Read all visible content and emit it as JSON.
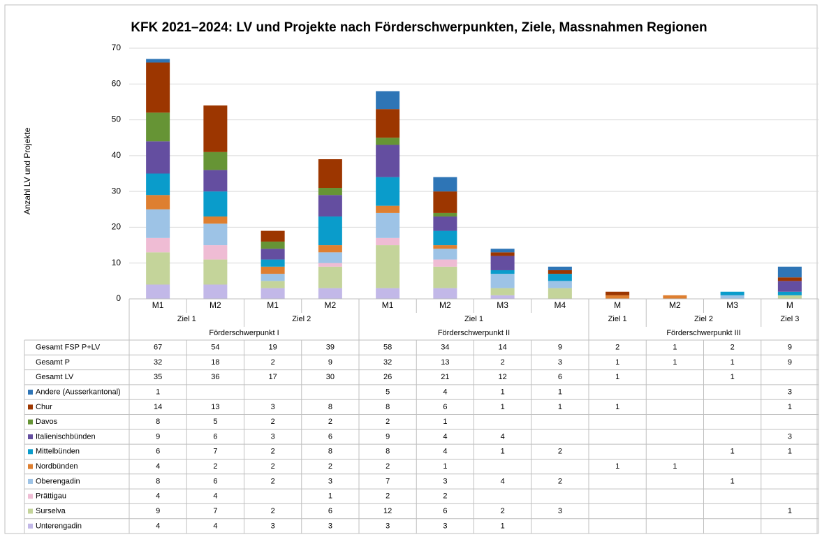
{
  "chart_data": {
    "type": "stacked_bar",
    "title": "KFK 2021–2024: LV und Projekte nach Förderschwerpunkten, Ziele, Massnahmen Regionen",
    "ylabel": "Anzahl LV und Projekte",
    "ylim": [
      0,
      70
    ],
    "yticks": [
      0,
      10,
      20,
      30,
      40,
      50,
      60,
      70
    ],
    "grid": true,
    "groups": [
      {
        "label": "Förderschwerpunkt I",
        "subgroups": [
          {
            "label": "Ziel 1",
            "categories": [
              "M1",
              "M2"
            ]
          },
          {
            "label": "Ziel 2",
            "categories": [
              "M1",
              "M2"
            ]
          }
        ]
      },
      {
        "label": "Förderschwerpunkt II",
        "subgroups": [
          {
            "label": "Ziel 1",
            "categories": [
              "M1",
              "M2",
              "M3",
              "M4"
            ]
          }
        ]
      },
      {
        "label": "Förderschwerpunkt III",
        "subgroups": [
          {
            "label": "Ziel 1",
            "categories": [
              "M"
            ]
          },
          {
            "label": "Ziel 2",
            "categories": [
              "M2",
              "M3"
            ]
          },
          {
            "label": "Ziel 3",
            "categories": [
              "M"
            ]
          }
        ]
      }
    ],
    "table_rows": [
      {
        "label": "Gesamt FSP P+LV",
        "values": [
          67,
          54,
          19,
          39,
          58,
          34,
          14,
          9,
          2,
          1,
          2,
          9
        ]
      },
      {
        "label": "Gesamt P",
        "values": [
          32,
          18,
          2,
          9,
          32,
          13,
          2,
          3,
          1,
          1,
          1,
          9
        ]
      },
      {
        "label": "Gesamt LV",
        "values": [
          35,
          36,
          17,
          30,
          26,
          21,
          12,
          6,
          1,
          null,
          1,
          null
        ]
      }
    ],
    "series": [
      {
        "name": "Andere (Ausserkantonal)",
        "color": "#2e75b6",
        "values": [
          1,
          null,
          null,
          null,
          5,
          4,
          1,
          1,
          null,
          null,
          null,
          3
        ]
      },
      {
        "name": "Chur",
        "color": "#9c3600",
        "values": [
          14,
          13,
          3,
          8,
          8,
          6,
          1,
          1,
          1,
          null,
          null,
          1
        ]
      },
      {
        "name": "Davos",
        "color": "#669435",
        "values": [
          8,
          5,
          2,
          2,
          2,
          1,
          null,
          null,
          null,
          null,
          null,
          null
        ]
      },
      {
        "name": "Italienischbünden",
        "color": "#644ea0",
        "values": [
          9,
          6,
          3,
          6,
          9,
          4,
          4,
          null,
          null,
          null,
          null,
          3
        ]
      },
      {
        "name": "Mittelbünden",
        "color": "#0a9ccb",
        "values": [
          6,
          7,
          2,
          8,
          8,
          4,
          1,
          2,
          null,
          null,
          1,
          1
        ]
      },
      {
        "name": "Nordbünden",
        "color": "#de7f30",
        "values": [
          4,
          2,
          2,
          2,
          2,
          1,
          null,
          null,
          1,
          1,
          null,
          null
        ]
      },
      {
        "name": "Oberengadin",
        "color": "#9dc3e6",
        "values": [
          8,
          6,
          2,
          3,
          7,
          3,
          4,
          2,
          null,
          null,
          1,
          null
        ]
      },
      {
        "name": "Prättigau",
        "color": "#efbcd4",
        "values": [
          4,
          4,
          null,
          1,
          2,
          2,
          null,
          null,
          null,
          null,
          null,
          null
        ]
      },
      {
        "name": "Surselva",
        "color": "#c4d49a",
        "values": [
          9,
          7,
          2,
          6,
          12,
          6,
          2,
          3,
          null,
          null,
          null,
          1
        ]
      },
      {
        "name": "Unterengadin",
        "color": "#c2b8e8",
        "values": [
          4,
          4,
          3,
          3,
          3,
          3,
          1,
          null,
          null,
          null,
          null,
          null
        ]
      }
    ]
  }
}
